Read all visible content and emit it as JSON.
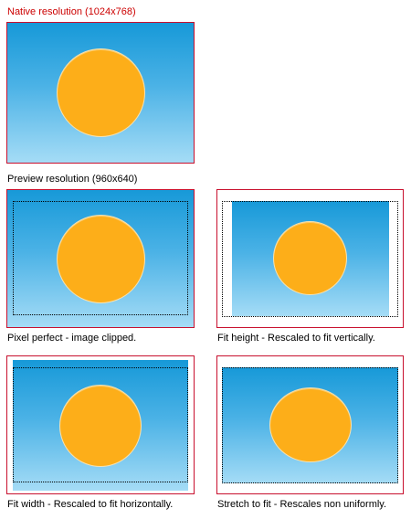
{
  "native": {
    "caption": "Native resolution (1024x768)",
    "caption_color": "#cc0000"
  },
  "preview": {
    "caption": "Preview resolution (960x640)"
  },
  "modes": [
    {
      "caption": "Pixel perfect - image clipped."
    },
    {
      "caption": "Fit height - Rescaled to fit vertically."
    },
    {
      "caption": "Fit width - Rescaled to fit horizontally."
    },
    {
      "caption": "Stretch to fit - Rescales non uniformly."
    }
  ],
  "colors": {
    "frame_border": "#c8102e",
    "sky_top": "#1799d8",
    "sky_bottom": "#a5dcf6",
    "sun": "#fdae19"
  }
}
